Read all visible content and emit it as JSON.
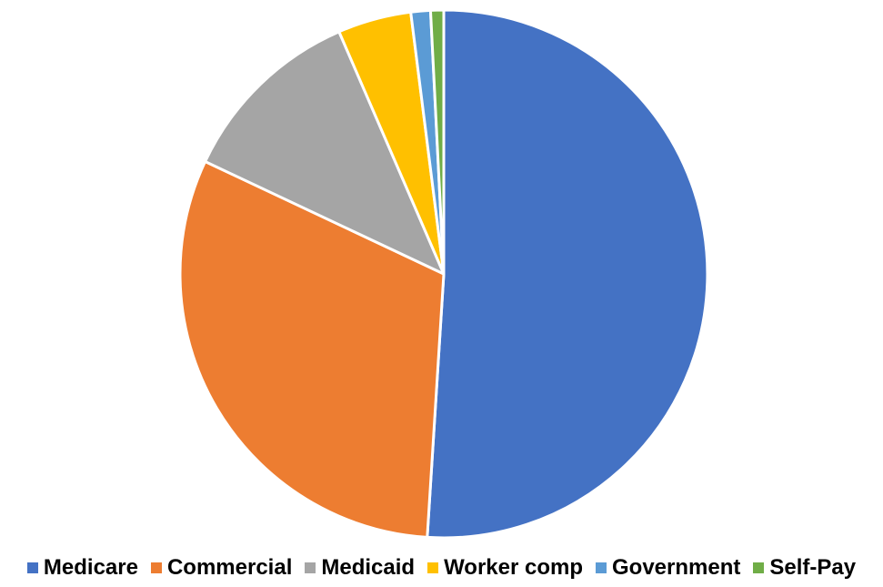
{
  "chart_data": {
    "type": "pie",
    "title": "",
    "legend_position": "bottom",
    "start_angle_deg": 0,
    "direction": "clockwise",
    "slices": [
      {
        "label": "Medicare",
        "value": 51.0,
        "color": "#4472C4"
      },
      {
        "label": "Commercial",
        "value": 31.0,
        "color": "#ED7D31"
      },
      {
        "label": "Medicaid",
        "value": 11.5,
        "color": "#A5A5A5"
      },
      {
        "label": "Worker comp",
        "value": 4.5,
        "color": "#FFC000"
      },
      {
        "label": "Government",
        "value": 1.2,
        "color": "#5B9BD5"
      },
      {
        "label": "Self-Pay",
        "value": 0.8,
        "color": "#70AD47"
      }
    ]
  }
}
